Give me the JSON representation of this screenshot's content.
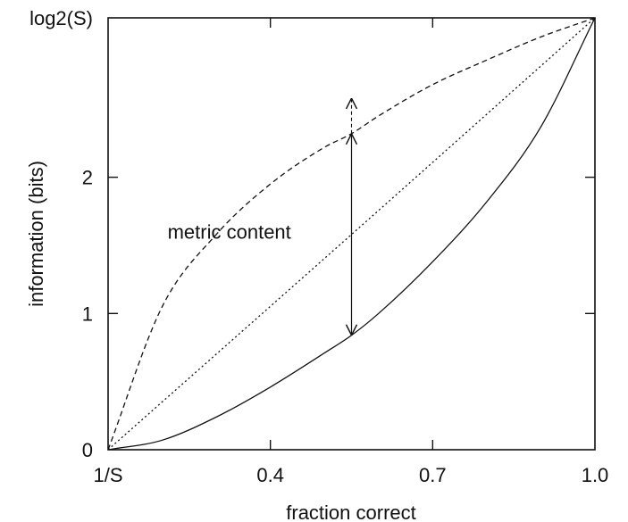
{
  "chart_data": {
    "type": "line",
    "xlabel": "fraction correct",
    "ylabel": "information (bits)",
    "xlim": [
      0.1,
      1.0
    ],
    "ylim": [
      0,
      3.17
    ],
    "x_ticks": [
      {
        "value": 0.1,
        "label": "1/S"
      },
      {
        "value": 0.4,
        "label": "0.4"
      },
      {
        "value": 0.7,
        "label": "0.7"
      },
      {
        "value": 1.0,
        "label": "1.0"
      }
    ],
    "y_ticks": [
      {
        "value": 0,
        "label": "0"
      },
      {
        "value": 1,
        "label": "1"
      },
      {
        "value": 2,
        "label": "2"
      },
      {
        "value": 3.17,
        "label": "log2(S)"
      }
    ],
    "series": [
      {
        "style": "dashed",
        "x": [
          0.1,
          0.2,
          0.3,
          0.4,
          0.5,
          0.55,
          0.6,
          0.7,
          0.8,
          0.9,
          1.0
        ],
        "y": [
          0,
          1.05,
          1.58,
          1.95,
          2.22,
          2.32,
          2.45,
          2.68,
          2.86,
          3.03,
          3.17
        ]
      },
      {
        "style": "dotted",
        "x": [
          0.1,
          0.55,
          1.0
        ],
        "y": [
          0,
          1.58,
          3.17
        ]
      },
      {
        "style": "solid",
        "x": [
          0.1,
          0.2,
          0.3,
          0.4,
          0.5,
          0.55,
          0.6,
          0.7,
          0.8,
          0.9,
          1.0
        ],
        "y": [
          0,
          0.07,
          0.24,
          0.46,
          0.71,
          0.84,
          1.0,
          1.38,
          1.82,
          2.37,
          3.17
        ]
      }
    ],
    "annotations": [
      {
        "text": "metric content",
        "x": 0.21,
        "y": 1.6
      },
      {
        "type": "double-arrow",
        "x": 0.55,
        "y_from": 0.84,
        "y_to": 2.32
      },
      {
        "type": "dashed-arrow",
        "x": 0.55,
        "y_from": 2.32,
        "y_to": 2.58
      }
    ],
    "grid": false,
    "legend": "none"
  }
}
